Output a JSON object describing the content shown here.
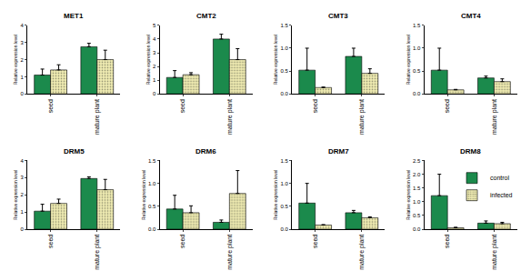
{
  "chart_data": [
    {
      "type": "bar",
      "title": "MET1",
      "ylabel": "Relative expression level",
      "categories": [
        "seed",
        "mature plant"
      ],
      "series": [
        {
          "name": "control",
          "color": "#1b8a4c",
          "values": [
            1.1,
            2.75
          ],
          "errors": [
            0.35,
            0.2
          ]
        },
        {
          "name": "infected",
          "color": "#f0ecb2",
          "values": [
            1.4,
            2.0
          ],
          "errors": [
            0.3,
            0.55
          ]
        }
      ],
      "ylim": [
        0,
        4
      ],
      "yticks": [
        0,
        1,
        2,
        3,
        4
      ]
    },
    {
      "type": "bar",
      "title": "CMT2",
      "ylabel": "Relative expression level",
      "categories": [
        "seed",
        "mature plant"
      ],
      "series": [
        {
          "name": "control",
          "color": "#1b8a4c",
          "values": [
            1.2,
            4.0
          ],
          "errors": [
            0.5,
            0.35
          ]
        },
        {
          "name": "infected",
          "color": "#f0ecb2",
          "values": [
            1.4,
            2.5
          ],
          "errors": [
            0.15,
            0.8
          ]
        }
      ],
      "ylim": [
        0,
        5
      ],
      "yticks": [
        0,
        1,
        2,
        3,
        4,
        5
      ]
    },
    {
      "type": "bar",
      "title": "CMT3",
      "ylabel": "Relative expression level",
      "categories": [
        "seed",
        "mature plant"
      ],
      "series": [
        {
          "name": "control",
          "color": "#1b8a4c",
          "values": [
            0.52,
            0.82
          ],
          "errors": [
            0.48,
            0.18
          ]
        },
        {
          "name": "infected",
          "color": "#f0ecb2",
          "values": [
            0.14,
            0.45
          ],
          "errors": [
            0.01,
            0.1
          ]
        }
      ],
      "ylim": [
        0,
        1.5
      ],
      "yticks": [
        {
          "value": 0,
          "label": "0.0"
        },
        0.5,
        {
          "value": 1,
          "label": "1.0"
        },
        1.5
      ]
    },
    {
      "type": "bar",
      "title": "CMT4",
      "ylabel": "Relative expression level",
      "categories": [
        "seed",
        "mature plant"
      ],
      "series": [
        {
          "name": "control",
          "color": "#1b8a4c",
          "values": [
            0.52,
            0.35
          ],
          "errors": [
            0.48,
            0.04
          ]
        },
        {
          "name": "infected",
          "color": "#f0ecb2",
          "values": [
            0.09,
            0.27
          ],
          "errors": [
            0.01,
            0.06
          ]
        }
      ],
      "ylim": [
        0,
        1.5
      ],
      "yticks": [
        {
          "value": 0,
          "label": "0.0"
        },
        0.5,
        {
          "value": 1,
          "label": "1.0"
        },
        1.5
      ]
    },
    {
      "type": "bar",
      "title": "DRM5",
      "ylabel": "Relative expression level",
      "categories": [
        "seed",
        "mature plant"
      ],
      "series": [
        {
          "name": "control",
          "color": "#1b8a4c",
          "values": [
            1.05,
            2.95
          ],
          "errors": [
            0.4,
            0.1
          ]
        },
        {
          "name": "infected",
          "color": "#f0ecb2",
          "values": [
            1.5,
            2.3
          ],
          "errors": [
            0.25,
            0.6
          ]
        }
      ],
      "ylim": [
        0,
        4
      ],
      "yticks": [
        0,
        1,
        2,
        3,
        4
      ]
    },
    {
      "type": "bar",
      "title": "DRM6",
      "ylabel": "Relative expression level",
      "categories": [
        "seed",
        "mature plant"
      ],
      "series": [
        {
          "name": "control",
          "color": "#1b8a4c",
          "values": [
            0.44,
            0.15
          ],
          "errors": [
            0.3,
            0.05
          ]
        },
        {
          "name": "infected",
          "color": "#f0ecb2",
          "values": [
            0.36,
            0.78
          ],
          "errors": [
            0.15,
            0.5
          ]
        }
      ],
      "ylim": [
        0,
        1.5
      ],
      "yticks": [
        {
          "value": 0,
          "label": "0.0"
        },
        0.5,
        {
          "value": 1,
          "label": "1.0"
        },
        1.5
      ]
    },
    {
      "type": "bar",
      "title": "DRM7",
      "ylabel": "Relative expression level",
      "categories": [
        "seed",
        "mature plant"
      ],
      "series": [
        {
          "name": "control",
          "color": "#1b8a4c",
          "values": [
            0.57,
            0.36
          ],
          "errors": [
            0.43,
            0.05
          ]
        },
        {
          "name": "infected",
          "color": "#f0ecb2",
          "values": [
            0.09,
            0.25
          ],
          "errors": [
            0.01,
            0.02
          ]
        }
      ],
      "ylim": [
        0,
        1.5
      ],
      "yticks": [
        {
          "value": 0,
          "label": "0.0"
        },
        0.5,
        {
          "value": 1,
          "label": "1.0"
        },
        1.5
      ]
    },
    {
      "type": "bar",
      "title": "DRM8",
      "ylabel": "Relative expression level",
      "categories": [
        "seed",
        "mature plant"
      ],
      "series": [
        {
          "name": "control",
          "color": "#1b8a4c",
          "values": [
            1.22,
            0.22
          ],
          "errors": [
            0.78,
            0.08
          ]
        },
        {
          "name": "infected",
          "color": "#f0ecb2",
          "values": [
            0.05,
            0.2
          ],
          "errors": [
            0.02,
            0.05
          ]
        }
      ],
      "ylim": [
        0,
        2.5
      ],
      "yticks": [
        {
          "value": 0,
          "label": "0.0"
        },
        0.5,
        {
          "value": 1,
          "label": "1.0"
        },
        1.5,
        {
          "value": 2,
          "label": "2.0"
        },
        2.5
      ],
      "legend": "upper right"
    }
  ]
}
